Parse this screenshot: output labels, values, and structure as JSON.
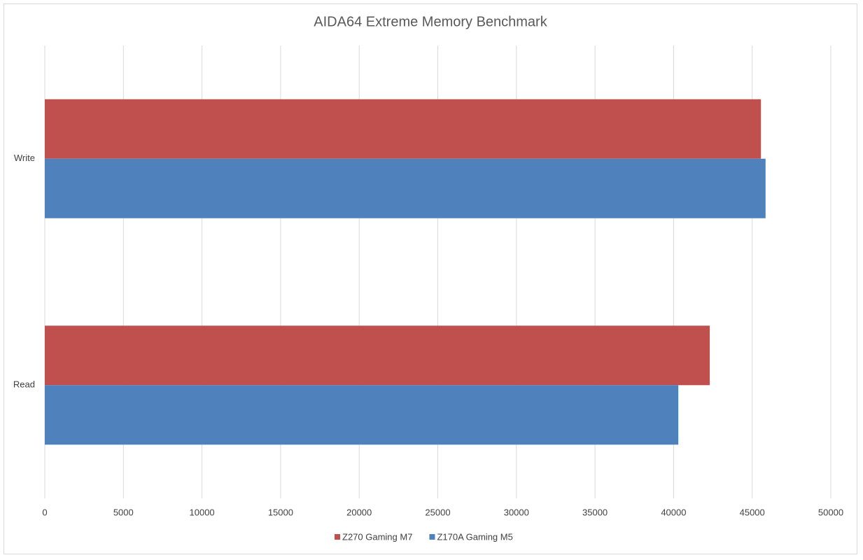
{
  "chart_data": {
    "type": "hbar",
    "title": "AIDA64 Extreme Memory Benchmark",
    "categories": [
      "Read",
      "Write"
    ],
    "series": [
      {
        "name": "Z270 Gaming M7",
        "color": "#c0504d",
        "values": [
          42300,
          45550
        ]
      },
      {
        "name": "Z170A Gaming M5",
        "color": "#4f81bd",
        "values": [
          40300,
          45850
        ]
      }
    ],
    "xlim": [
      0,
      50000
    ],
    "xticks": [
      0,
      5000,
      10000,
      15000,
      20000,
      25000,
      30000,
      35000,
      40000,
      45000,
      50000
    ],
    "grid": true,
    "legend": "bottom"
  }
}
